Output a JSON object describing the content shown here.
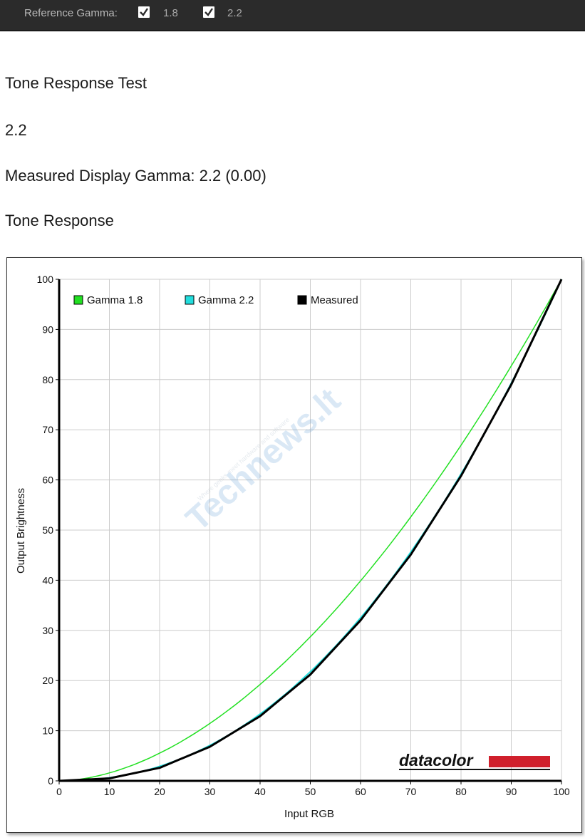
{
  "toolbar": {
    "reference_label": "Reference Gamma:",
    "options": [
      {
        "label": "1.8",
        "checked": true
      },
      {
        "label": "2.2",
        "checked": true
      }
    ]
  },
  "page": {
    "title": "Tone Response Test",
    "target": "2.2",
    "measured": "Measured Display Gamma: 2.2 (0.00)",
    "section": "Tone Response"
  },
  "watermark": {
    "brand": "Technews.lt",
    "tagline": "Where geeks meet hardware and software"
  },
  "logo": {
    "text": "datacolor",
    "accent": "#d0202c"
  },
  "chart_data": {
    "type": "line",
    "xlabel": "Input RGB",
    "ylabel": "Output Brightness",
    "xlim": [
      0,
      100
    ],
    "ylim": [
      0,
      100
    ],
    "xticks": [
      0,
      10,
      20,
      30,
      40,
      50,
      60,
      70,
      80,
      90,
      100
    ],
    "yticks": [
      0,
      10,
      20,
      30,
      40,
      50,
      60,
      70,
      80,
      90,
      100
    ],
    "grid": true,
    "legend_position": "top-left",
    "series": [
      {
        "name": "Gamma 1.8",
        "color": "#22e022",
        "gamma": 1.8,
        "x": [
          0,
          10,
          20,
          30,
          40,
          50,
          60,
          70,
          80,
          90,
          100
        ],
        "y": [
          0,
          1.6,
          5.5,
          11.5,
          19.2,
          28.7,
          39.9,
          52.6,
          66.9,
          82.7,
          100
        ]
      },
      {
        "name": "Gamma 2.2",
        "color": "#22dddd",
        "gamma": 2.2,
        "x": [
          0,
          10,
          20,
          30,
          40,
          50,
          60,
          70,
          80,
          90,
          100
        ],
        "y": [
          0,
          0.6,
          2.9,
          7.1,
          13.3,
          21.8,
          32.5,
          45.6,
          61.2,
          79.3,
          100
        ]
      },
      {
        "name": "Measured",
        "color": "#000000",
        "x": [
          0,
          10,
          20,
          30,
          40,
          50,
          60,
          70,
          80,
          90,
          100
        ],
        "y": [
          0,
          0.5,
          2.6,
          6.8,
          12.9,
          21.2,
          32,
          45.1,
          60.8,
          79,
          100
        ]
      }
    ]
  }
}
